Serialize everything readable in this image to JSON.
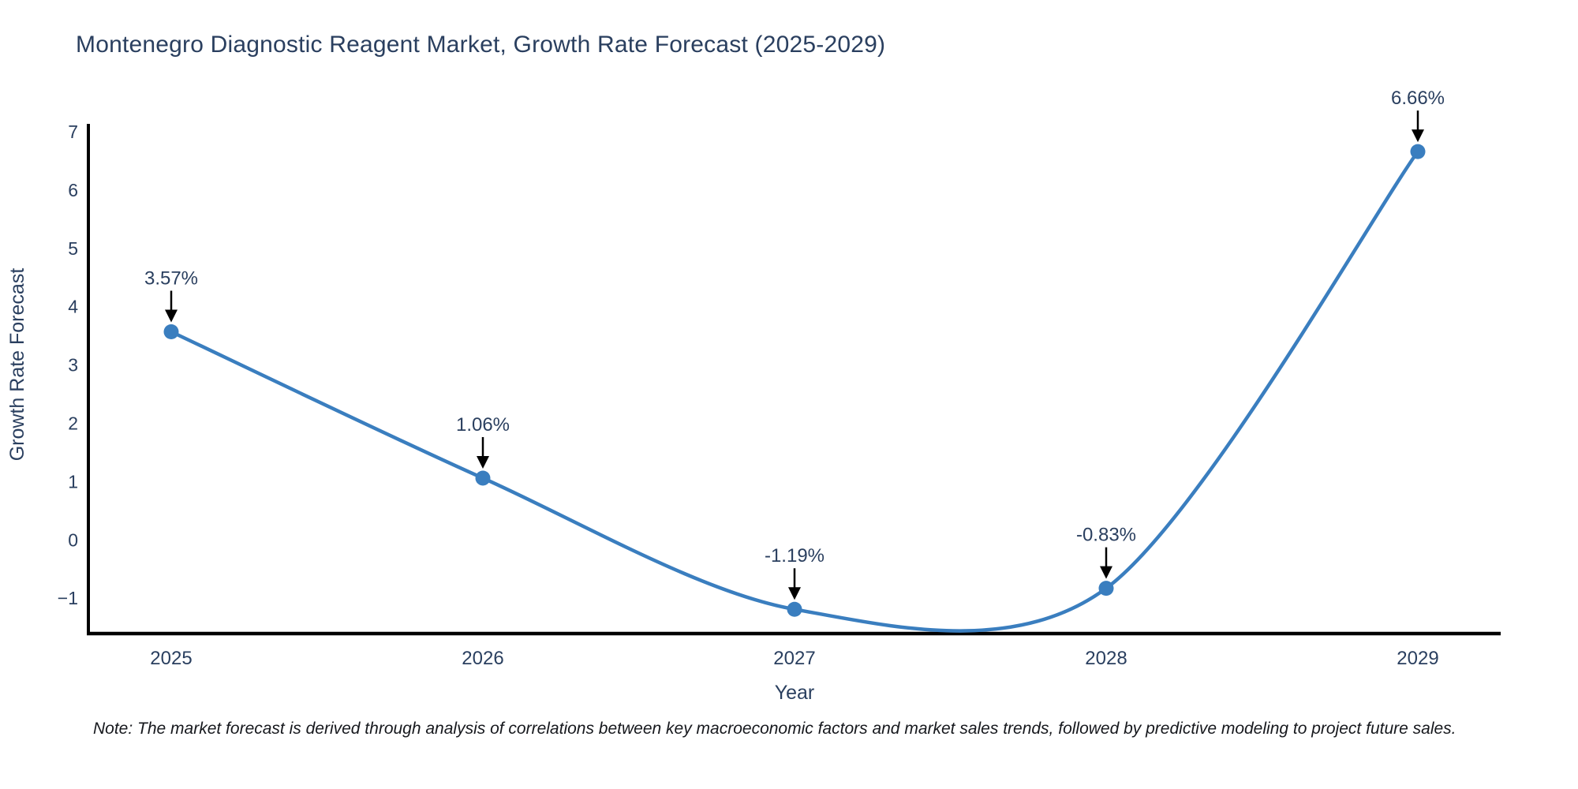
{
  "title": "Montenegro Diagnostic Reagent Market, Growth Rate Forecast (2025-2029)",
  "note": "Note: The market forecast is derived through analysis of correlations between key macroeconomic factors and market sales trends, followed by predictive modeling to project future sales.",
  "colors": {
    "text": "#2a3f5f",
    "line": "#3a7ebf",
    "marker": "#3a7ebf",
    "axis": "#000000",
    "arrow": "#000000",
    "background": "#ffffff"
  },
  "chart_data": {
    "type": "line",
    "title": "Montenegro Diagnostic Reagent Market, Growth Rate Forecast (2025-2029)",
    "xlabel": "Year",
    "ylabel": "Growth Rate Forecast",
    "x": [
      2025,
      2026,
      2027,
      2028,
      2029
    ],
    "categories": [
      "2025",
      "2026",
      "2027",
      "2028",
      "2029"
    ],
    "values": [
      3.57,
      1.06,
      -1.19,
      -0.83,
      6.66
    ],
    "annotations": [
      "3.57%",
      "1.06%",
      "-1.19%",
      "-0.83%",
      "6.66%"
    ],
    "yticks": [
      7,
      6,
      5,
      4,
      3,
      2,
      1,
      0,
      -1
    ],
    "yticklabels": [
      "7",
      "6",
      "5",
      "4",
      "3",
      "2",
      "1",
      "0",
      "−1"
    ],
    "ylim": [
      -1.62,
      7.05
    ],
    "line_shape": "spline",
    "grid": false,
    "legend_position": "none",
    "markers": true
  }
}
